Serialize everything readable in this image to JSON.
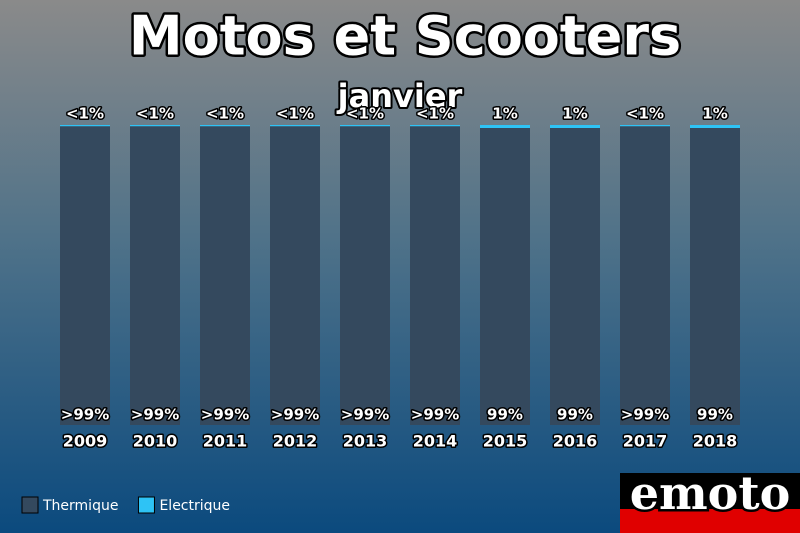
{
  "chart_data": {
    "type": "stacked-bar",
    "title": "Motos et Scooters",
    "subtitle": "janvier",
    "categories": [
      "2009",
      "2010",
      "2011",
      "2012",
      "2013",
      "2014",
      "2015",
      "2016",
      "2017",
      "2018"
    ],
    "series": [
      {
        "name": "Thermique",
        "color": "#34495e",
        "values": [
          99.6,
          99.6,
          99.6,
          99.6,
          99.6,
          99.6,
          99,
          99,
          99.6,
          99
        ],
        "value_labels": [
          ">99%",
          ">99%",
          ">99%",
          ">99%",
          ">99%",
          ">99%",
          "99%",
          "99%",
          ">99%",
          "99%"
        ]
      },
      {
        "name": "Electrique",
        "color": "#2ec3f5",
        "values": [
          0.4,
          0.4,
          0.4,
          0.4,
          0.4,
          0.4,
          1,
          1,
          0.4,
          1
        ],
        "value_labels": [
          "<1%",
          "<1%",
          "<1%",
          "<1%",
          "<1%",
          "<1%",
          "1%",
          "1%",
          "<1%",
          "1%"
        ]
      }
    ],
    "logo": "emoto"
  }
}
